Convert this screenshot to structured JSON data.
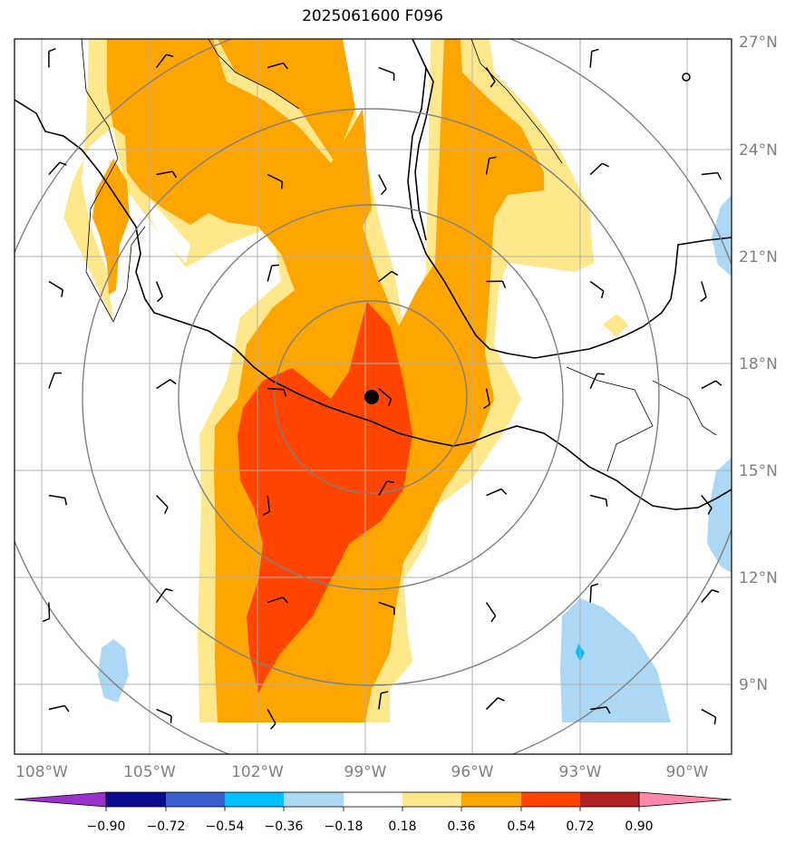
{
  "title": "2025061600 F096",
  "colors": {
    "c_m090_m072": "#0b0b8f",
    "c_m072_m054": "#3b5fcf",
    "c_m054_m036": "#00bfff",
    "c_m036_m018": "#add8f5",
    "c_m018_018": "#ffffff",
    "c_018_036": "#ffe88c",
    "c_036_054": "#ffa500",
    "c_054_072": "#ff4500",
    "c_072_090": "#b22222",
    "extend_low": "#9932cc",
    "extend_high": "#ff88aa",
    "grid": "#b0b0b0",
    "coast": "#000000",
    "range_rings": "#808080"
  },
  "map": {
    "extent": {
      "lon_min": "108.5W",
      "lon_max": "88.5W",
      "lat_min": "7N",
      "lat_max": "27N"
    },
    "lat_labels": [
      "27°N",
      "24°N",
      "21°N",
      "18°N",
      "15°N",
      "12°N",
      "9°N"
    ],
    "lon_labels": [
      "108°W",
      "105°W",
      "102°W",
      "99°W",
      "96°W",
      "93°W",
      "90°W"
    ],
    "center_marker": {
      "lon": -98.8,
      "lat": 17.1
    },
    "range_rings": 4
  },
  "colorbar": {
    "ticks": [
      "−0.90",
      "−0.72",
      "−0.54",
      "−0.36",
      "−0.18",
      "0.18",
      "0.36",
      "0.54",
      "0.72",
      "0.90"
    ]
  },
  "wind_barbs": [
    {
      "lon": -107.8,
      "lat": 26.3
    },
    {
      "lon": -104.8,
      "lat": 26.3
    },
    {
      "lon": -101.7,
      "lat": 26.3
    },
    {
      "lon": -98.6,
      "lat": 26.3
    },
    {
      "lon": -95.6,
      "lat": 26.3
    },
    {
      "lon": -92.7,
      "lat": 26.3
    },
    {
      "lon": -107.8,
      "lat": 23.3
    },
    {
      "lon": -104.8,
      "lat": 23.3
    },
    {
      "lon": -101.7,
      "lat": 23.3
    },
    {
      "lon": -98.6,
      "lat": 23.3
    },
    {
      "lon": -95.6,
      "lat": 23.3
    },
    {
      "lon": -92.7,
      "lat": 23.3
    },
    {
      "lon": -89.6,
      "lat": 23.3
    },
    {
      "lon": -107.8,
      "lat": 20.3
    },
    {
      "lon": -104.8,
      "lat": 20.3
    },
    {
      "lon": -101.7,
      "lat": 20.3
    },
    {
      "lon": -98.6,
      "lat": 20.3
    },
    {
      "lon": -95.6,
      "lat": 20.3
    },
    {
      "lon": -92.7,
      "lat": 20.3
    },
    {
      "lon": -89.6,
      "lat": 20.3
    },
    {
      "lon": -107.8,
      "lat": 17.3
    },
    {
      "lon": -104.8,
      "lat": 17.3
    },
    {
      "lon": -101.7,
      "lat": 17.3
    },
    {
      "lon": -98.6,
      "lat": 17.3
    },
    {
      "lon": -95.6,
      "lat": 17.3
    },
    {
      "lon": -92.7,
      "lat": 17.3
    },
    {
      "lon": -89.6,
      "lat": 17.3
    },
    {
      "lon": -107.8,
      "lat": 14.3
    },
    {
      "lon": -104.8,
      "lat": 14.3
    },
    {
      "lon": -101.7,
      "lat": 14.3
    },
    {
      "lon": -98.6,
      "lat": 14.3
    },
    {
      "lon": -95.6,
      "lat": 14.3
    },
    {
      "lon": -92.7,
      "lat": 14.3
    },
    {
      "lon": -89.6,
      "lat": 14.3
    },
    {
      "lon": -107.8,
      "lat": 11.3
    },
    {
      "lon": -104.8,
      "lat": 11.3
    },
    {
      "lon": -101.7,
      "lat": 11.3
    },
    {
      "lon": -98.6,
      "lat": 11.3
    },
    {
      "lon": -95.6,
      "lat": 11.3
    },
    {
      "lon": -92.7,
      "lat": 11.3
    },
    {
      "lon": -89.6,
      "lat": 11.3
    },
    {
      "lon": -107.8,
      "lat": 8.3
    },
    {
      "lon": -104.8,
      "lat": 8.3
    },
    {
      "lon": -101.7,
      "lat": 8.3
    },
    {
      "lon": -98.6,
      "lat": 8.3
    },
    {
      "lon": -95.6,
      "lat": 8.3
    },
    {
      "lon": -92.7,
      "lat": 8.3
    },
    {
      "lon": -89.6,
      "lat": 8.3
    }
  ]
}
